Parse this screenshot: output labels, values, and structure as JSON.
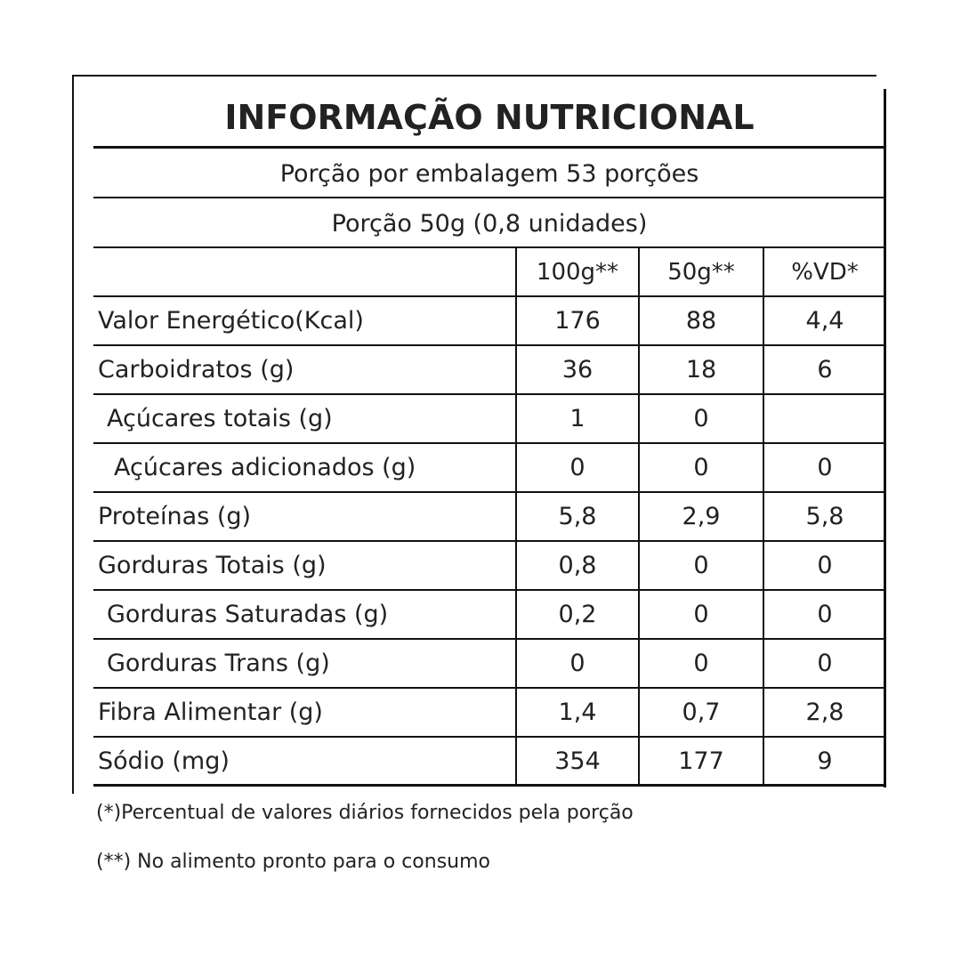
{
  "title": "INFORMAÇÃO NUTRICIONAL",
  "servings_per_package": "Porção por embalagem 53 porções",
  "serving_size": "Porção 50g (0,8 unidades)",
  "table": {
    "columns": [
      "100g**",
      "50g**",
      "%VD*"
    ],
    "rows": [
      [
        "Valor Energético(Kcal)",
        "176",
        "88",
        "4,4"
      ],
      [
        "Carboidratos (g)",
        "36",
        "18",
        "6"
      ],
      [
        "Açúcares totais (g)",
        "1",
        "0",
        null
      ],
      [
        "Açúcares adicionados (g)",
        "0",
        "0",
        "0"
      ],
      [
        "Proteínas (g)",
        "5,8",
        "2,9",
        "5,8"
      ],
      [
        "Gorduras Totais (g)",
        "0,8",
        "0",
        "0"
      ],
      [
        "Gorduras Saturadas (g)",
        "0,2",
        "0",
        "0"
      ],
      [
        "Gorduras Trans (g)",
        "0",
        "0",
        "0"
      ],
      [
        "Fibra Alimentar (g)",
        "1,4",
        "0,7",
        "2,8"
      ],
      [
        "Sódio (mg)",
        "354",
        "177",
        "9"
      ]
    ]
  },
  "footnotes": [
    "(*)Percentual de valores diários fornecidos pela porção",
    "(**) No alimento pronto para o consumo"
  ]
}
